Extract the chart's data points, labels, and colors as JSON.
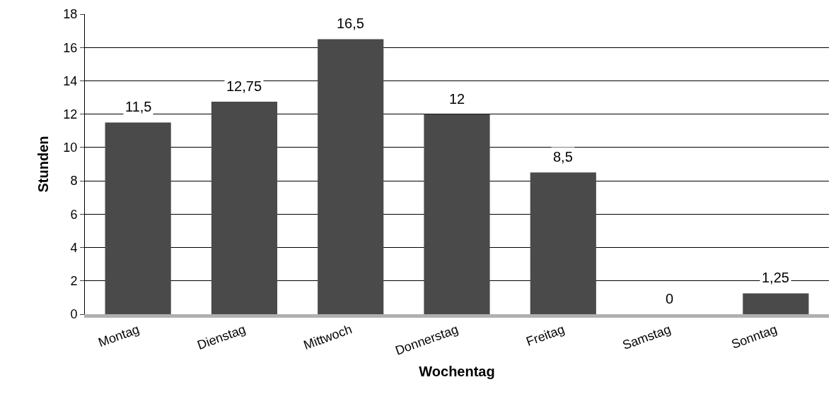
{
  "chart_data": {
    "type": "bar",
    "xlabel": "Wochentag",
    "ylabel": "Stunden",
    "categories": [
      "Montag",
      "Dienstag",
      "Mittwoch",
      "Donnerstag",
      "Freitag",
      "Samstag",
      "Sonntag"
    ],
    "values": [
      11.5,
      12.75,
      16.5,
      12,
      8.5,
      0,
      1.25
    ],
    "value_labels": [
      "11,5",
      "12,75",
      "16,5",
      "12",
      "8,5",
      "0",
      "1,25"
    ],
    "color": "#4a4a4a",
    "ylim": [
      0,
      18
    ],
    "yticks": [
      0,
      2,
      4,
      6,
      8,
      10,
      12,
      14,
      16,
      18
    ],
    "grid": "y",
    "legend": false
  }
}
